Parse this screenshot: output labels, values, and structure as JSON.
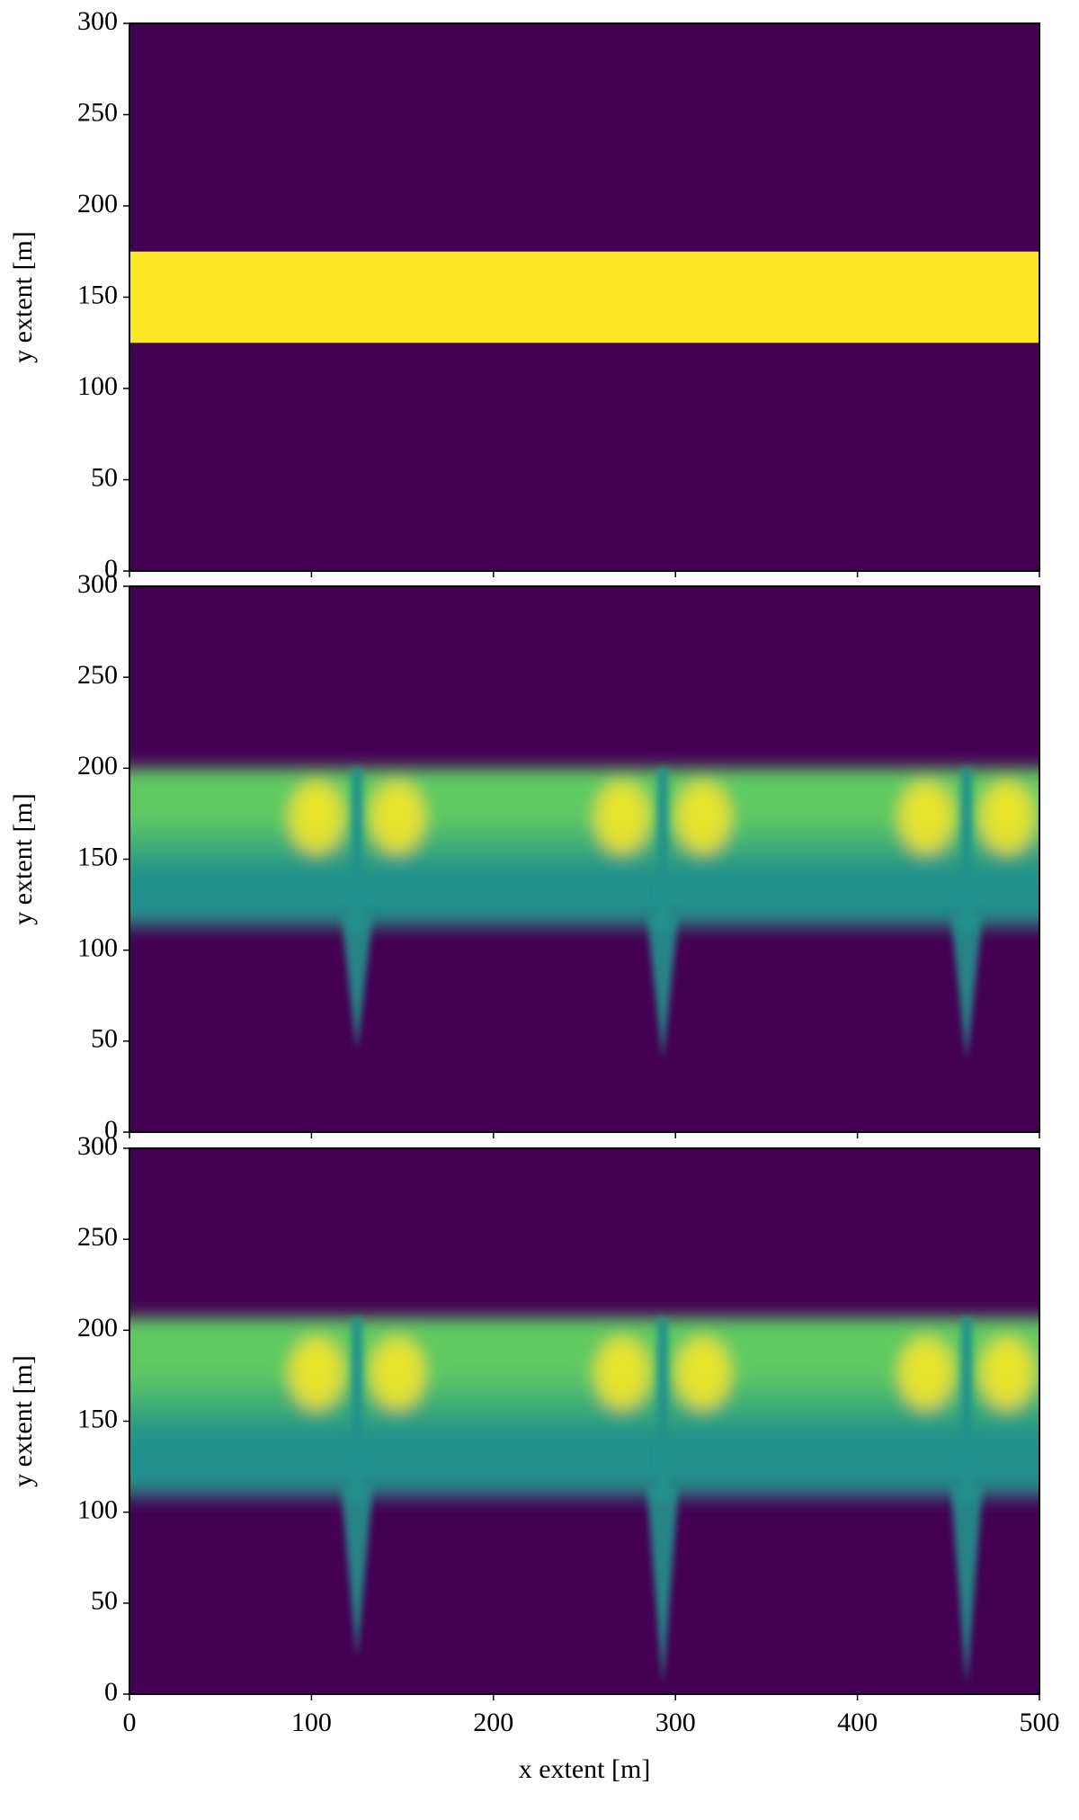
{
  "chart_data": [
    {
      "type": "heatmap",
      "ylabel": "y extent [m]",
      "xlim": [
        0,
        500
      ],
      "ylim": [
        0,
        300
      ],
      "xticks": [
        0,
        100,
        200,
        300,
        400,
        500
      ],
      "yticks": [
        0,
        50,
        100,
        150,
        200,
        250,
        300
      ],
      "colors": {
        "low": "#440154",
        "mid": "#21918c",
        "green": "#5ec962",
        "high": "#fde725"
      },
      "band": [
        125,
        175
      ]
    },
    {
      "type": "heatmap",
      "ylabel": "y extent [m]",
      "xlim": [
        0,
        500
      ],
      "ylim": [
        0,
        300
      ],
      "xticks": [
        0,
        100,
        200,
        300,
        400,
        500
      ],
      "yticks": [
        0,
        50,
        100,
        150,
        200,
        250,
        300
      ],
      "colors": {
        "low": "#440154",
        "mid": "#21918c",
        "green": "#5ec962",
        "high": "#fde725"
      },
      "front": [
        110,
        200
      ],
      "plumes": [
        {
          "x": 125,
          "bottom": 45
        },
        {
          "x": 293,
          "bottom": 40
        },
        {
          "x": 460,
          "bottom": 40
        }
      ]
    },
    {
      "type": "heatmap",
      "ylabel": "y extent [m]",
      "xlabel": "x extent [m]",
      "xlim": [
        0,
        500
      ],
      "ylim": [
        0,
        300
      ],
      "xticks": [
        0,
        100,
        200,
        300,
        400,
        500
      ],
      "yticks": [
        0,
        50,
        100,
        150,
        200,
        250,
        300
      ],
      "colors": {
        "low": "#440154",
        "mid": "#21918c",
        "green": "#5ec962",
        "high": "#fde725"
      },
      "front": [
        105,
        207
      ],
      "plumes": [
        {
          "x": 125,
          "bottom": 20
        },
        {
          "x": 293,
          "bottom": 5
        },
        {
          "x": 460,
          "bottom": 5
        }
      ]
    }
  ]
}
